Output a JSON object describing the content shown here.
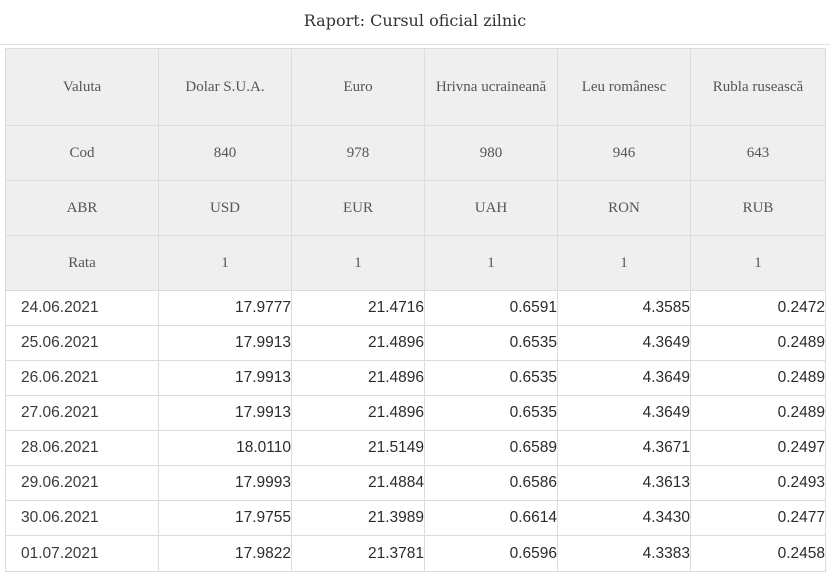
{
  "report": {
    "title": "Raport: Cursul oficial zilnic"
  },
  "header": {
    "currency_row": [
      "Valuta",
      "Dolar S.U.A.",
      "Euro",
      "Hrivna ucraineană",
      "Leu românesc",
      "Rubla rusească"
    ],
    "code_row": [
      "Cod",
      "840",
      "978",
      "980",
      "946",
      "643"
    ],
    "abbr_row": [
      "ABR",
      "USD",
      "EUR",
      "UAH",
      "RON",
      "RUB"
    ],
    "rate_row": [
      "Rata",
      "1",
      "1",
      "1",
      "1",
      "1"
    ]
  },
  "rows": [
    [
      "24.06.2021",
      "17.9777",
      "21.4716",
      "0.6591",
      "4.3585",
      "0.2472"
    ],
    [
      "25.06.2021",
      "17.9913",
      "21.4896",
      "0.6535",
      "4.3649",
      "0.2489"
    ],
    [
      "26.06.2021",
      "17.9913",
      "21.4896",
      "0.6535",
      "4.3649",
      "0.2489"
    ],
    [
      "27.06.2021",
      "17.9913",
      "21.4896",
      "0.6535",
      "4.3649",
      "0.2489"
    ],
    [
      "28.06.2021",
      "18.0110",
      "21.5149",
      "0.6589",
      "4.3671",
      "0.2497"
    ],
    [
      "29.06.2021",
      "17.9993",
      "21.4884",
      "0.6586",
      "4.3613",
      "0.2493"
    ],
    [
      "30.06.2021",
      "17.9755",
      "21.3989",
      "0.6614",
      "4.3430",
      "0.2477"
    ],
    [
      "01.07.2021",
      "17.9822",
      "21.3781",
      "0.6596",
      "4.3383",
      "0.2458"
    ]
  ]
}
